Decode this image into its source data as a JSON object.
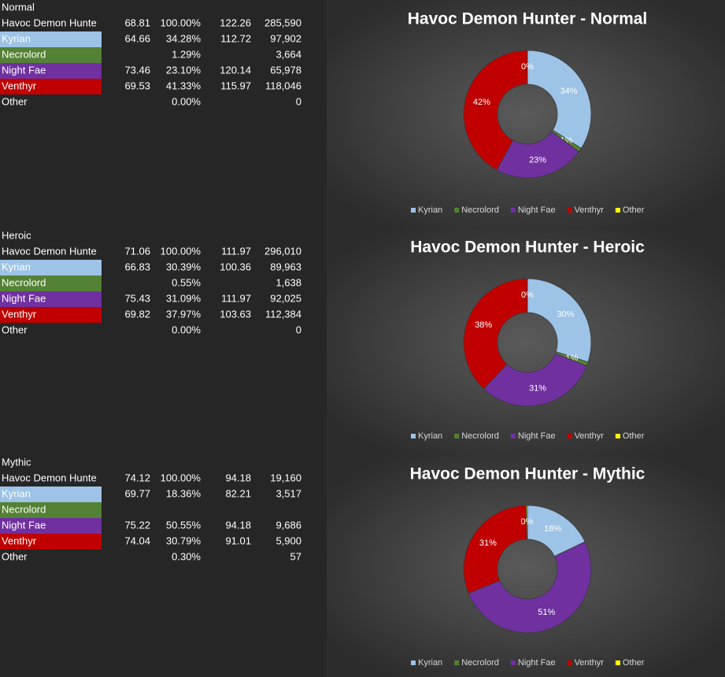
{
  "tables": [
    {
      "title": "Normal",
      "row_colors": [
        null,
        "#9dc3e6",
        "#548235",
        "#7030a0",
        "#c00000",
        null
      ],
      "rows": [
        [
          "Havoc Demon Hunte",
          "68.81",
          "100.00%",
          "122.26",
          "285,590"
        ],
        [
          "Kyrian",
          "64.66",
          "34.28%",
          "112.72",
          "97,902"
        ],
        [
          "Necrolord",
          null,
          "1.29%",
          null,
          "3,664"
        ],
        [
          "Night Fae",
          "73.46",
          "23.10%",
          "120.14",
          "65,978"
        ],
        [
          "Venthyr",
          "69.53",
          "41.33%",
          "115.97",
          "118,046"
        ],
        [
          "Other",
          null,
          "0.00%",
          null,
          "0"
        ]
      ]
    },
    {
      "title": "Heroic",
      "row_colors": [
        null,
        "#9dc3e6",
        "#548235",
        "#7030a0",
        "#c00000",
        null
      ],
      "rows": [
        [
          "Havoc Demon Hunte",
          "71.06",
          "100.00%",
          "111.97",
          "296,010"
        ],
        [
          "Kyrian",
          "66.83",
          "30.39%",
          "100.36",
          "89,963"
        ],
        [
          "Necrolord",
          null,
          "0.55%",
          null,
          "1,638"
        ],
        [
          "Night Fae",
          "75.43",
          "31.09%",
          "111.97",
          "92,025"
        ],
        [
          "Venthyr",
          "69.82",
          "37.97%",
          "103.63",
          "112,384"
        ],
        [
          "Other",
          null,
          "0.00%",
          null,
          "0"
        ]
      ]
    },
    {
      "title": "Mythic",
      "row_colors": [
        null,
        "#9dc3e6",
        "#548235",
        "#7030a0",
        "#c00000",
        null
      ],
      "rows": [
        [
          "Havoc Demon Hunte",
          "74.12",
          "100.00%",
          "94.18",
          "19,160"
        ],
        [
          "Kyrian",
          "69.77",
          "18.36%",
          "82.21",
          "3,517"
        ],
        [
          "Necrolord",
          null,
          null,
          null,
          null
        ],
        [
          "Night Fae",
          "75.22",
          "50.55%",
          "94.18",
          "9,686"
        ],
        [
          "Venthyr",
          "74.04",
          "30.79%",
          "91.01",
          "5,900"
        ],
        [
          "Other",
          null,
          "0.30%",
          null,
          "57"
        ]
      ]
    }
  ],
  "chart_data": [
    {
      "type": "donut",
      "title": "Havoc Demon Hunter - Normal",
      "categories": [
        "Kyrian",
        "Necrolord",
        "Night Fae",
        "Venthyr",
        "Other"
      ],
      "colors": [
        "#9dc3e6",
        "#548235",
        "#7030a0",
        "#c00000",
        "#ffff00"
      ],
      "values": [
        34,
        1,
        23,
        42,
        0
      ],
      "value_labels": [
        "34%",
        "1%",
        "23%",
        "42%",
        "0%"
      ]
    },
    {
      "type": "donut",
      "title": "Havoc Demon Hunter - Heroic",
      "categories": [
        "Kyrian",
        "Necrolord",
        "Night Fae",
        "Venthyr",
        "Other"
      ],
      "colors": [
        "#9dc3e6",
        "#548235",
        "#7030a0",
        "#c00000",
        "#ffff00"
      ],
      "values": [
        30,
        1,
        31,
        38,
        0
      ],
      "value_labels": [
        "30%",
        "1%",
        "31%",
        "38%",
        "0%"
      ]
    },
    {
      "type": "donut",
      "title": "Havoc Demon Hunter - Mythic",
      "categories": [
        "Kyrian",
        "Necrolord",
        "Night Fae",
        "Venthyr",
        "Other"
      ],
      "colors": [
        "#9dc3e6",
        "#548235",
        "#7030a0",
        "#c00000",
        "#ffff00"
      ],
      "values": [
        18,
        0,
        51,
        31,
        0.3
      ],
      "value_labels": [
        "18%",
        null,
        "51%",
        "31%",
        "0%"
      ]
    }
  ]
}
